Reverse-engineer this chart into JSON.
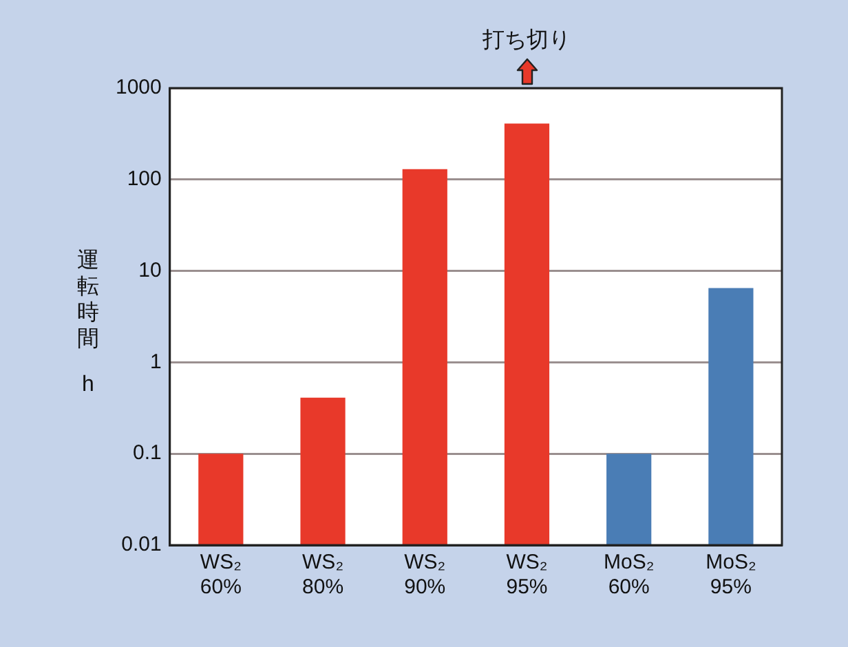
{
  "chart_data": {
    "type": "bar",
    "ylabel": "運転時間 h",
    "categories": [
      "WS₂ 60%",
      "WS₂ 80%",
      "WS₂ 90%",
      "WS₂ 95%",
      "MoS₂ 60%",
      "MoS₂ 95%"
    ],
    "values": [
      0.1,
      0.41,
      130,
      410,
      0.1,
      6.5
    ],
    "colors": [
      "#e8392a",
      "#e8392a",
      "#e8392a",
      "#e8392a",
      "#4a7db5",
      "#4a7db5"
    ],
    "log": true,
    "ylim": [
      0.01,
      1000
    ],
    "yticks": [
      0.01,
      0.1,
      1,
      10,
      100,
      1000
    ],
    "grid": "y",
    "legend": false,
    "annotations": [
      "打ち切り"
    ]
  }
}
